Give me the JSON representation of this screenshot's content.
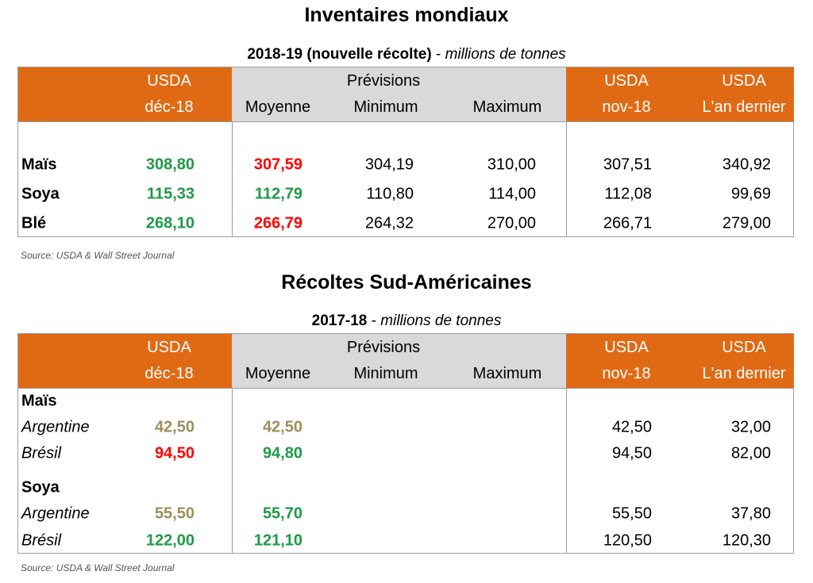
{
  "colors": {
    "header_orange": "#E06A14",
    "header_grey": "#D9D9D9",
    "green": "#1E9A48",
    "red": "#FF0000",
    "olive": "#9C8F5A"
  },
  "headers": {
    "usda": "USDA",
    "dec": "déc-18",
    "previsions": "Prévisions",
    "moyenne": "Moyenne",
    "minimum": "Minimum",
    "maximum": "Maximum",
    "nov": "nov-18",
    "last_year": "L'an dernier"
  },
  "section1": {
    "title": "Inventaires mondiaux",
    "subtitle_bold": "2018-19 (nouvelle récolte)",
    "subtitle_italic": "millions de tonnes",
    "rows": [
      {
        "label": "Maïs",
        "style": "bold",
        "usda_dec": "308,80",
        "usda_dec_color": "green",
        "moyenne": "307,59",
        "moyenne_color": "red",
        "minimum": "304,19",
        "maximum": "310,00",
        "nov": "307,51",
        "last_year": "340,92"
      },
      {
        "label": "Soya",
        "style": "bold",
        "usda_dec": "115,33",
        "usda_dec_color": "green",
        "moyenne": "112,79",
        "moyenne_color": "green",
        "minimum": "110,80",
        "maximum": "114,00",
        "nov": "112,08",
        "last_year": "99,69"
      },
      {
        "label": "Blé",
        "style": "bold",
        "usda_dec": "268,10",
        "usda_dec_color": "green",
        "moyenne": "266,79",
        "moyenne_color": "red",
        "minimum": "264,32",
        "maximum": "270,00",
        "nov": "266,71",
        "last_year": "279,00"
      }
    ],
    "source": "Source: USDA & Wall Street Journal"
  },
  "section2": {
    "title": "Récoltes Sud-Américaines",
    "subtitle_bold": "2017-18",
    "subtitle_italic": "millions de tonnes",
    "rows": [
      {
        "label": "Maïs",
        "style": "bold"
      },
      {
        "label": "Argentine",
        "style": "it",
        "usda_dec": "42,50",
        "usda_dec_color": "olive",
        "moyenne": "42,50",
        "moyenne_color": "olive",
        "nov": "42,50",
        "last_year": "32,00"
      },
      {
        "label": "Brésil",
        "style": "it",
        "usda_dec": "94,50",
        "usda_dec_color": "red",
        "moyenne": "94,80",
        "moyenne_color": "green",
        "nov": "94,50",
        "last_year": "82,00"
      },
      {
        "label": "Soya",
        "style": "bold"
      },
      {
        "label": "Argentine",
        "style": "it",
        "usda_dec": "55,50",
        "usda_dec_color": "olive",
        "moyenne": "55,70",
        "moyenne_color": "green",
        "nov": "55,50",
        "last_year": "37,80"
      },
      {
        "label": "Brésil",
        "style": "it",
        "usda_dec": "122,00",
        "usda_dec_color": "green",
        "moyenne": "121,10",
        "moyenne_color": "green",
        "nov": "120,50",
        "last_year": "120,30"
      }
    ],
    "source": "Source: USDA & Wall Street Journal"
  }
}
